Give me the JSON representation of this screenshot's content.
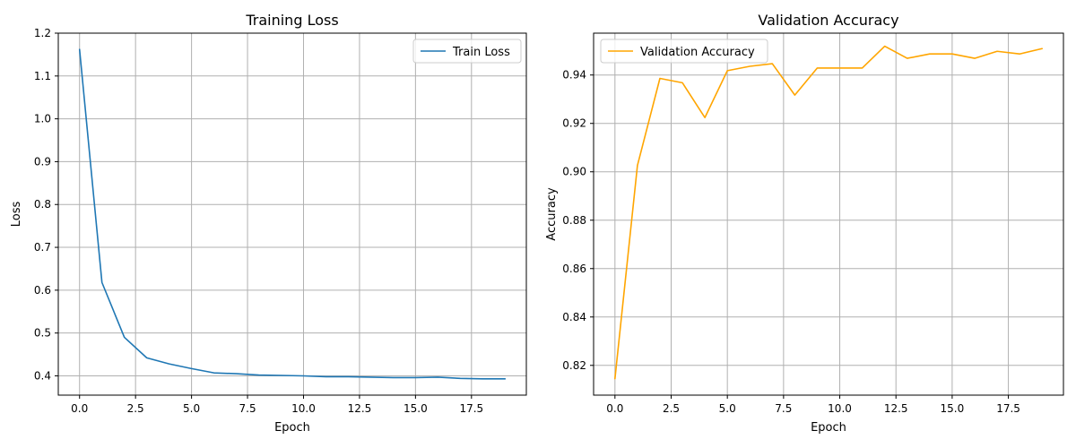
{
  "chart_data": [
    {
      "type": "line",
      "title": "Training Loss",
      "xlabel": "Epoch",
      "ylabel": "Loss",
      "xlim": [
        -0.95,
        19.95
      ],
      "ylim": [
        0.355,
        1.2
      ],
      "xticks": [
        0.0,
        2.5,
        5.0,
        7.5,
        10.0,
        12.5,
        15.0,
        17.5
      ],
      "xtick_labels": [
        "0.0",
        "2.5",
        "5.0",
        "7.5",
        "10.0",
        "12.5",
        "15.0",
        "17.5"
      ],
      "yticks": [
        0.4,
        0.5,
        0.6,
        0.7,
        0.8,
        0.9,
        1.0,
        1.1,
        1.2
      ],
      "ytick_labels": [
        "0.4",
        "0.5",
        "0.6",
        "0.7",
        "0.8",
        "0.9",
        "1.0",
        "1.1",
        "1.2"
      ],
      "grid": true,
      "legend_position": "upper right",
      "series": [
        {
          "name": "Train Loss",
          "color": "#1f77b4",
          "x": [
            0,
            1,
            2,
            3,
            4,
            5,
            6,
            7,
            8,
            9,
            10,
            11,
            12,
            13,
            14,
            15,
            16,
            17,
            18,
            19
          ],
          "values": [
            1.162,
            0.618,
            0.49,
            0.442,
            0.428,
            0.417,
            0.407,
            0.405,
            0.402,
            0.401,
            0.4,
            0.398,
            0.398,
            0.397,
            0.396,
            0.396,
            0.397,
            0.394,
            0.393,
            0.393
          ]
        }
      ]
    },
    {
      "type": "line",
      "title": "Validation Accuracy",
      "xlabel": "Epoch",
      "ylabel": "Accuracy",
      "xlim": [
        -0.95,
        19.95
      ],
      "ylim": [
        0.8077,
        0.9573
      ],
      "xticks": [
        0.0,
        2.5,
        5.0,
        7.5,
        10.0,
        12.5,
        15.0,
        17.5
      ],
      "xtick_labels": [
        "0.0",
        "2.5",
        "5.0",
        "7.5",
        "10.0",
        "12.5",
        "15.0",
        "17.5"
      ],
      "yticks": [
        0.82,
        0.84,
        0.86,
        0.88,
        0.9,
        0.92,
        0.94
      ],
      "ytick_labels": [
        "0.82",
        "0.84",
        "0.86",
        "0.88",
        "0.90",
        "0.92",
        "0.94"
      ],
      "grid": true,
      "legend_position": "upper left",
      "series": [
        {
          "name": "Validation Accuracy",
          "color": "#ffa500",
          "x": [
            0,
            1,
            2,
            3,
            4,
            5,
            6,
            7,
            8,
            9,
            10,
            11,
            12,
            13,
            14,
            15,
            16,
            17,
            18,
            19
          ],
          "values": [
            0.8145,
            0.9026,
            0.9386,
            0.9368,
            0.9224,
            0.9418,
            0.9436,
            0.9447,
            0.9317,
            0.9429,
            0.9429,
            0.9429,
            0.9519,
            0.9469,
            0.9487,
            0.9487,
            0.9469,
            0.9498,
            0.9487,
            0.9509
          ]
        }
      ]
    }
  ]
}
